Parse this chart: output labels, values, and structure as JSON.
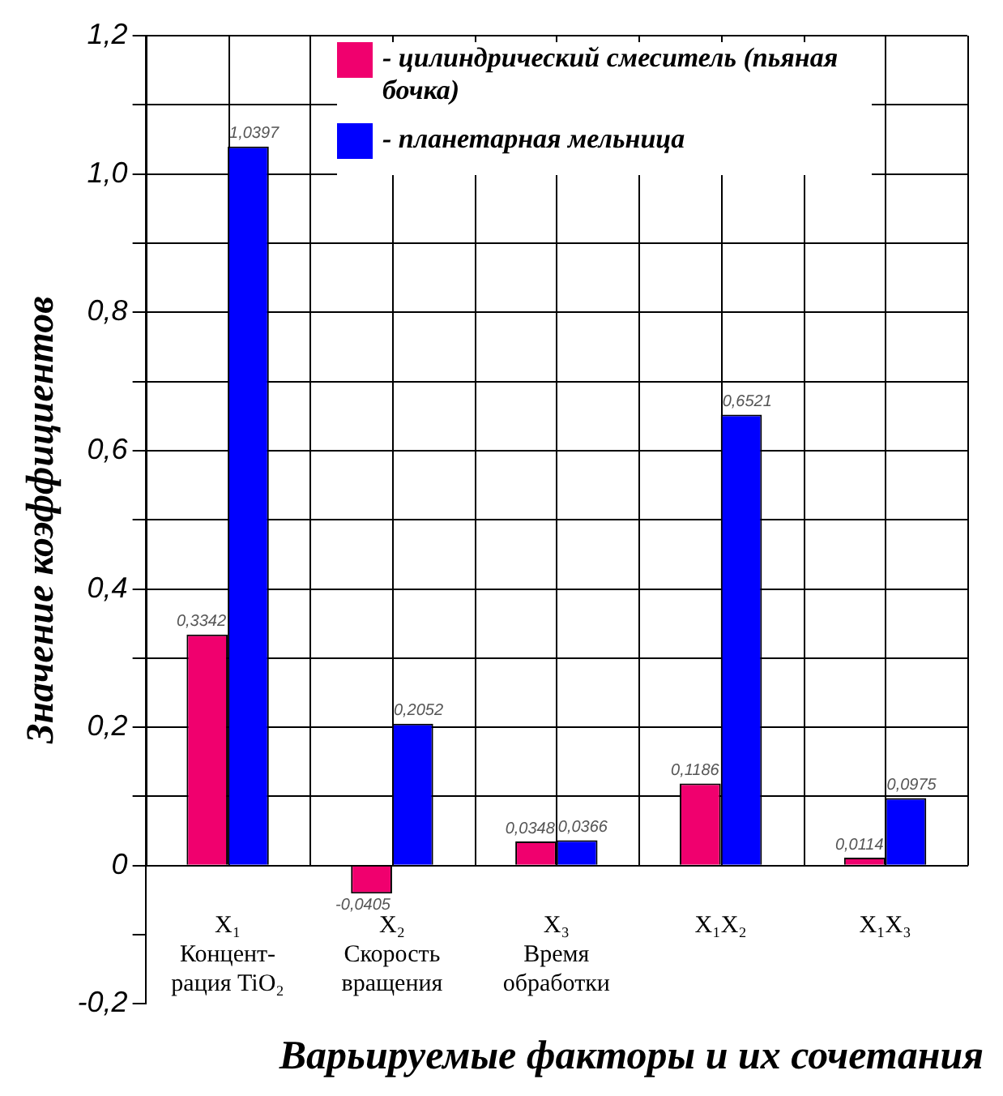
{
  "chart_data": {
    "type": "bar",
    "ylabel": "Значение коэффициентов",
    "xlabel": "Варьируемые факторы и их сочетания",
    "categories": [
      "X₁\nКонцент-\nрация TiO₂",
      "X₂\nСкорость\nвращения",
      "X₃\nВремя\nобработки",
      "X₁X₂",
      "X₁X₃"
    ],
    "series": [
      {
        "name": "- цилиндрический смеситель (пьяная бочка)",
        "color": "#f0006e",
        "values": [
          0.3342,
          -0.0405,
          0.0348,
          0.1186,
          0.0114
        ],
        "value_labels": [
          "0,3342",
          "-0,0405",
          "0,0348",
          "0,1186",
          "0,0114"
        ]
      },
      {
        "name": "- планетарная мельница",
        "color": "#0000ff",
        "values": [
          1.0397,
          0.2052,
          0.0366,
          0.6521,
          0.0975
        ],
        "value_labels": [
          "1,0397",
          "0,2052",
          "0,0366",
          "0,6521",
          "0,0975"
        ]
      }
    ],
    "ylim": [
      -0.2,
      1.2
    ],
    "yticks": [
      {
        "value": -0.2,
        "label": "-0,2"
      },
      {
        "value": -0.1,
        "label": null
      },
      0,
      {
        "value": 0.1,
        "label": null
      },
      {
        "value": 0.2,
        "label": "0,2"
      },
      {
        "value": 0.3,
        "label": null
      },
      {
        "value": 0.4,
        "label": "0,4"
      },
      {
        "value": 0.5,
        "label": null
      },
      {
        "value": 0.6,
        "label": "0,6"
      },
      {
        "value": 0.7,
        "label": null
      },
      {
        "value": 0.8,
        "label": "0,8"
      },
      {
        "value": 0.9,
        "label": null
      },
      {
        "value": 1.0,
        "label": "1,0"
      },
      {
        "value": 1.1,
        "label": null
      },
      {
        "value": 1.2,
        "label": "1,2"
      }
    ],
    "grid": true,
    "legend": "top"
  }
}
